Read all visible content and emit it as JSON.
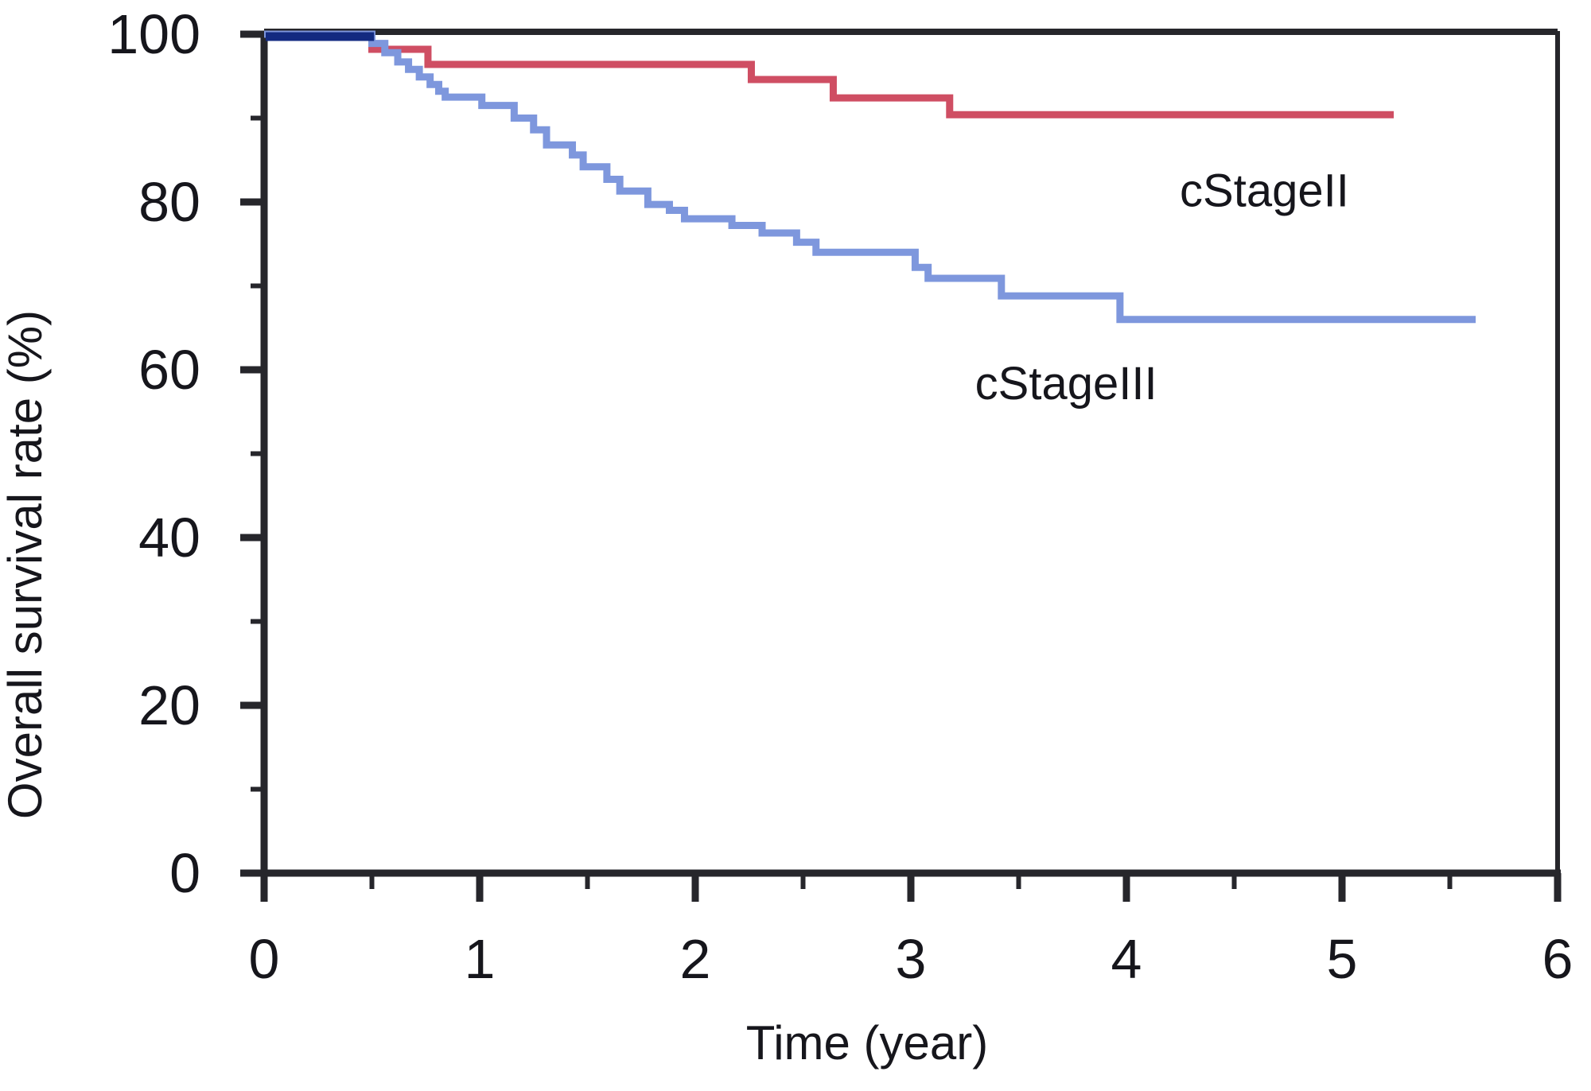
{
  "figure": {
    "background": "#ffffff"
  },
  "chart_data": {
    "type": "line",
    "chart_kind": "kaplan_meier_step_survival",
    "title": "",
    "xlabel": "Time (year)",
    "ylabel": "Overall survival rate (%)",
    "xlim": [
      0,
      6
    ],
    "ylim": [
      0,
      100
    ],
    "x_major_ticks": [
      0,
      1,
      2,
      3,
      4,
      5,
      6
    ],
    "x_minor_ticks": [
      0.5,
      1.5,
      2.5,
      3.5,
      4.5,
      5.5
    ],
    "y_major_ticks": [
      0,
      20,
      40,
      60,
      80,
      100
    ],
    "y_minor_ticks": [
      10,
      30,
      50,
      70,
      90
    ],
    "grid": false,
    "frame": true,
    "legend_position": "inline-annotations",
    "axis_color": "#26262b",
    "text_color": "#16161c",
    "series": [
      {
        "name": "cStageII",
        "color": "#cf4e63",
        "start": [
          0,
          100
        ],
        "steps": [
          [
            0.5,
            98.2
          ],
          [
            0.76,
            96.4
          ],
          [
            2.26,
            94.6
          ],
          [
            2.64,
            92.4
          ],
          [
            3.18,
            90.4
          ]
        ],
        "end_time": 5.24,
        "final_value": 90.4
      },
      {
        "name": "cStageIII",
        "color": "#7e97dd",
        "start": [
          0,
          100
        ],
        "steps": [
          [
            0.5,
            98.9
          ],
          [
            0.56,
            97.8
          ],
          [
            0.62,
            96.7
          ],
          [
            0.67,
            95.8
          ],
          [
            0.72,
            94.9
          ],
          [
            0.77,
            94.0
          ],
          [
            0.81,
            93.2
          ],
          [
            0.84,
            92.5
          ],
          [
            1.01,
            91.5
          ],
          [
            1.16,
            90.0
          ],
          [
            1.25,
            88.6
          ],
          [
            1.31,
            86.8
          ],
          [
            1.43,
            85.6
          ],
          [
            1.48,
            84.2
          ],
          [
            1.59,
            82.7
          ],
          [
            1.65,
            81.3
          ],
          [
            1.78,
            79.7
          ],
          [
            1.88,
            79.0
          ],
          [
            1.95,
            78.0
          ],
          [
            2.17,
            77.2
          ],
          [
            2.31,
            76.3
          ],
          [
            2.47,
            75.2
          ],
          [
            2.56,
            74.0
          ],
          [
            3.02,
            72.2
          ],
          [
            3.08,
            70.9
          ],
          [
            3.42,
            68.8
          ],
          [
            3.97,
            66.0
          ]
        ],
        "end_time": 5.62,
        "final_value": 66.0
      }
    ],
    "annotations": [
      {
        "text": "cStageII",
        "x": 4.64,
        "y": 79.5
      },
      {
        "text": "cStageIII",
        "x": 3.72,
        "y": 56.5
      }
    ],
    "overlap_start_segment": {
      "color": "#132a80",
      "from_time": 0,
      "to_time": 0.51,
      "value": 100
    }
  }
}
